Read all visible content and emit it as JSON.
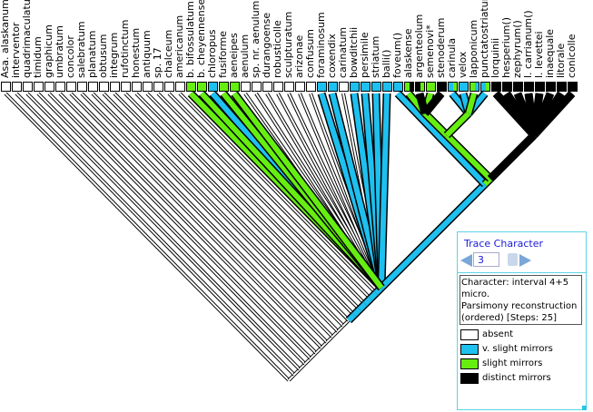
{
  "state_colors": {
    "w": "#ffffff",
    "b": "#1ec0ef",
    "g": "#66ee11",
    "k": "#000000"
  },
  "taxa": [
    {
      "name": "Asa. alaskanum",
      "state": "w"
    },
    {
      "name": "interventor",
      "state": "w"
    },
    {
      "name": "quadrimaculatum",
      "state": "w"
    },
    {
      "name": "timidum",
      "state": "w"
    },
    {
      "name": "graphicum",
      "state": "w"
    },
    {
      "name": "umbratum",
      "state": "w"
    },
    {
      "name": "concolor",
      "state": "w"
    },
    {
      "name": "salebratum",
      "state": "w"
    },
    {
      "name": "planatum",
      "state": "w"
    },
    {
      "name": "obtusum",
      "state": "w"
    },
    {
      "name": "integrum",
      "state": "w"
    },
    {
      "name": "rufotinctum",
      "state": "w"
    },
    {
      "name": "honestum",
      "state": "w"
    },
    {
      "name": "antiquum",
      "state": "w"
    },
    {
      "name": "sp. 17",
      "state": "w"
    },
    {
      "name": "chalceum",
      "state": "w"
    },
    {
      "name": "americanum",
      "state": "w"
    },
    {
      "name": "b. bifossulatum",
      "state": "g"
    },
    {
      "name": "b. cheyennense",
      "state": "g"
    },
    {
      "name": "chloropus",
      "state": "b"
    },
    {
      "name": "fusiforme",
      "state": "g"
    },
    {
      "name": "aeneipes",
      "state": "g"
    },
    {
      "name": "aenulum",
      "state": "w"
    },
    {
      "name": "sp. nr. aenulum",
      "state": "w"
    },
    {
      "name": "durangoense",
      "state": "w"
    },
    {
      "name": "robusticolle",
      "state": "w"
    },
    {
      "name": "sculpturatum",
      "state": "w"
    },
    {
      "name": "arizonae",
      "state": "w"
    },
    {
      "name": "confusum",
      "state": "w"
    },
    {
      "name": "foraminosum",
      "state": "b"
    },
    {
      "name": "coxendix",
      "state": "b"
    },
    {
      "name": "carinatum",
      "state": "w"
    },
    {
      "name": "bowditchii",
      "state": "b"
    },
    {
      "name": "persimile",
      "state": "b"
    },
    {
      "name": "striatum",
      "state": "b"
    },
    {
      "name": "balli()",
      "state": "b"
    },
    {
      "name": "foveum()",
      "state": "b"
    },
    {
      "name": "alaskense",
      "state": "gk"
    },
    {
      "name": "argenteolum",
      "state": "kg"
    },
    {
      "name": "semenovi*",
      "state": "g"
    },
    {
      "name": "stenoderum",
      "state": "k"
    },
    {
      "name": "carinula",
      "state": "bg"
    },
    {
      "name": "velox",
      "state": "b"
    },
    {
      "name": "lapponicum",
      "state": "gb"
    },
    {
      "name": "punctatostriatum",
      "state": "bg"
    },
    {
      "name": "lorquinii",
      "state": "k"
    },
    {
      "name": "hesperium()",
      "state": "k"
    },
    {
      "name": "zephyrum()",
      "state": "k"
    },
    {
      "name": "l. carrianum()",
      "state": "k"
    },
    {
      "name": "l. levettei",
      "state": "k"
    },
    {
      "name": "inaequale",
      "state": "k"
    },
    {
      "name": "litorale",
      "state": "k"
    },
    {
      "name": "conicolle",
      "state": "k"
    }
  ],
  "panel": {
    "title": "Trace Character",
    "character_number": "3",
    "description": "Character: interval 4+5 micro.\nParsimony reconstruction (ordered) [Steps: 25]",
    "legend": [
      {
        "label": "absent",
        "color": "#ffffff"
      },
      {
        "label": "v. slight mirrors",
        "color": "#1ec0ef"
      },
      {
        "label": "slight mirrors",
        "color": "#66ee11"
      },
      {
        "label": "distinct mirrors",
        "color": "#000000"
      }
    ]
  }
}
